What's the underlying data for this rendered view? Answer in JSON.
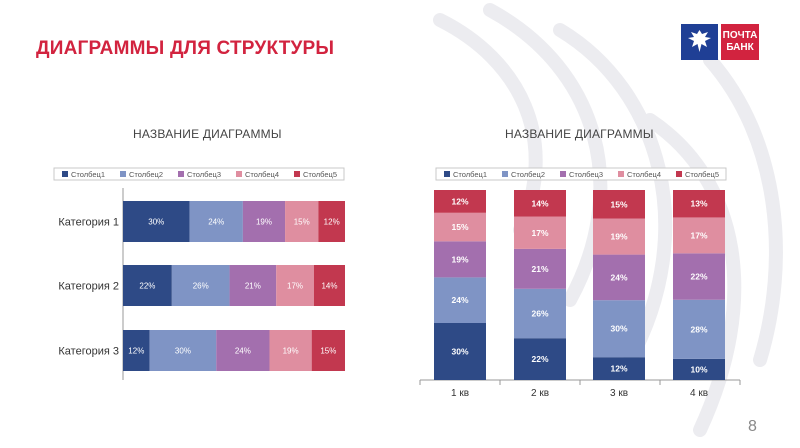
{
  "slide": {
    "title": "ДИАГРАММЫ ДЛЯ СТРУКТУРЫ",
    "page_number": "8",
    "logo_line1": "ПОЧТА",
    "logo_line2": "БАНК",
    "brand_colors": {
      "red": "#d2233f",
      "blue": "#1f3f95"
    }
  },
  "series_colors": [
    "#2e4a86",
    "#7f94c5",
    "#a36fae",
    "#df8ea0",
    "#c2384f"
  ],
  "chart_data": [
    {
      "type": "bar",
      "orientation": "horizontal",
      "stacked": "percent",
      "title": "НАЗВАНИЕ ДИАГРАММЫ",
      "legend_position": "top",
      "categories": [
        "Категория 1",
        "Категория 2",
        "Категория 3"
      ],
      "series": [
        {
          "name": "Столбец1",
          "values": [
            30,
            22,
            12
          ]
        },
        {
          "name": "Столбец2",
          "values": [
            24,
            26,
            30
          ]
        },
        {
          "name": "Столбец3",
          "values": [
            19,
            21,
            24
          ]
        },
        {
          "name": "Столбец4",
          "values": [
            15,
            17,
            19
          ]
        },
        {
          "name": "Столбец5",
          "values": [
            12,
            14,
            15
          ]
        }
      ],
      "grid": false
    },
    {
      "type": "bar",
      "orientation": "vertical",
      "stacked": "percent",
      "title": "НАЗВАНИЕ ДИАГРАММЫ",
      "legend_position": "top",
      "categories": [
        "1 кв",
        "2 кв",
        "3 кв",
        "4 кв"
      ],
      "series": [
        {
          "name": "Столбец1",
          "values": [
            30,
            22,
            12,
            10
          ]
        },
        {
          "name": "Столбец2",
          "values": [
            24,
            26,
            30,
            28
          ]
        },
        {
          "name": "Столбец3",
          "values": [
            19,
            21,
            24,
            22
          ]
        },
        {
          "name": "Столбец4",
          "values": [
            15,
            17,
            19,
            17
          ]
        },
        {
          "name": "Столбец5",
          "values": [
            12,
            14,
            15,
            13
          ]
        }
      ],
      "grid": false
    }
  ]
}
